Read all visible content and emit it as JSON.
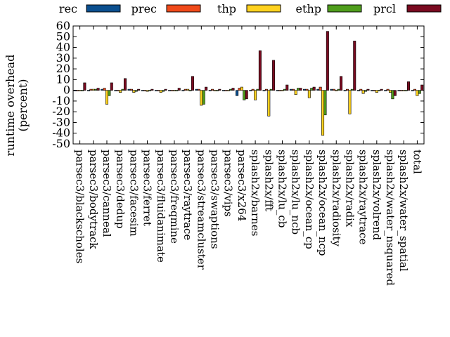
{
  "chart_data": {
    "type": "bar",
    "ylabel": [
      "runtime overhead",
      "(percent)"
    ],
    "ylim": [
      -50,
      60
    ],
    "yticks": [
      -50,
      -40,
      -30,
      -20,
      -10,
      0,
      10,
      20,
      30,
      40,
      50,
      60
    ],
    "grid": false,
    "legend_position": "top",
    "categories": [
      "parsec3/blackscholes",
      "parsec3/bodytrack",
      "parsec3/canneal",
      "parsec3/dedup",
      "parsec3/facesim",
      "parsec3/ferret",
      "parsec3/fluidanimate",
      "parsec3/freqmine",
      "parsec3/raytrace",
      "parsec3/streamcluster",
      "parsec3/swaptions",
      "parsec3/vips",
      "parsec3/x264",
      "splash2x/barnes",
      "splash2x/fft",
      "splash2x/lu_cb",
      "splash2x/lu_ncb",
      "splash2x/ocean_cp",
      "splash2x/ocean_ncp",
      "splash2x/radiosity",
      "splash2x/radix",
      "splash2x/raytrace",
      "splash2x/volrend",
      "splash2x/water_nsquared",
      "splash2x/water_spatial",
      "total"
    ],
    "series": [
      {
        "name": "rec",
        "color": "#0b4f8f",
        "values": [
          0,
          0,
          1,
          0,
          1,
          0,
          0,
          0,
          0,
          1,
          0,
          0,
          -5,
          0,
          0,
          0,
          1,
          1,
          1,
          1,
          0,
          0,
          0,
          0,
          0,
          0
        ]
      },
      {
        "name": "prec",
        "color": "#f04a1a",
        "values": [
          0,
          1,
          2,
          0,
          1,
          0,
          0,
          0,
          1,
          1,
          1,
          0,
          2,
          1,
          1,
          0,
          1,
          1,
          3,
          1,
          1,
          1,
          0,
          1,
          0,
          1
        ]
      },
      {
        "name": "thp",
        "color": "#ffd21f",
        "values": [
          0,
          1,
          -13,
          -2,
          -2,
          -1,
          -2,
          0,
          1,
          -14,
          0,
          0,
          3,
          -9,
          -24,
          0,
          -4,
          -7,
          -42,
          0,
          -22,
          -3,
          -2,
          -2,
          0,
          -5
        ]
      },
      {
        "name": "ethp",
        "color": "#4f9e1c",
        "values": [
          0,
          1,
          -5,
          1,
          -1,
          0,
          -1,
          0,
          0,
          -13,
          0,
          1,
          -9,
          1,
          1,
          1,
          2,
          2,
          -23,
          1,
          1,
          -1,
          0,
          -8,
          0,
          -3
        ]
      },
      {
        "name": "prcl",
        "color": "#7a0a20",
        "values": [
          7,
          2,
          7,
          11,
          1,
          1,
          1,
          2,
          13,
          3,
          1,
          2,
          -8,
          37,
          28,
          5,
          2,
          3,
          55,
          13,
          46,
          1,
          1,
          -5,
          8,
          5
        ]
      }
    ]
  }
}
